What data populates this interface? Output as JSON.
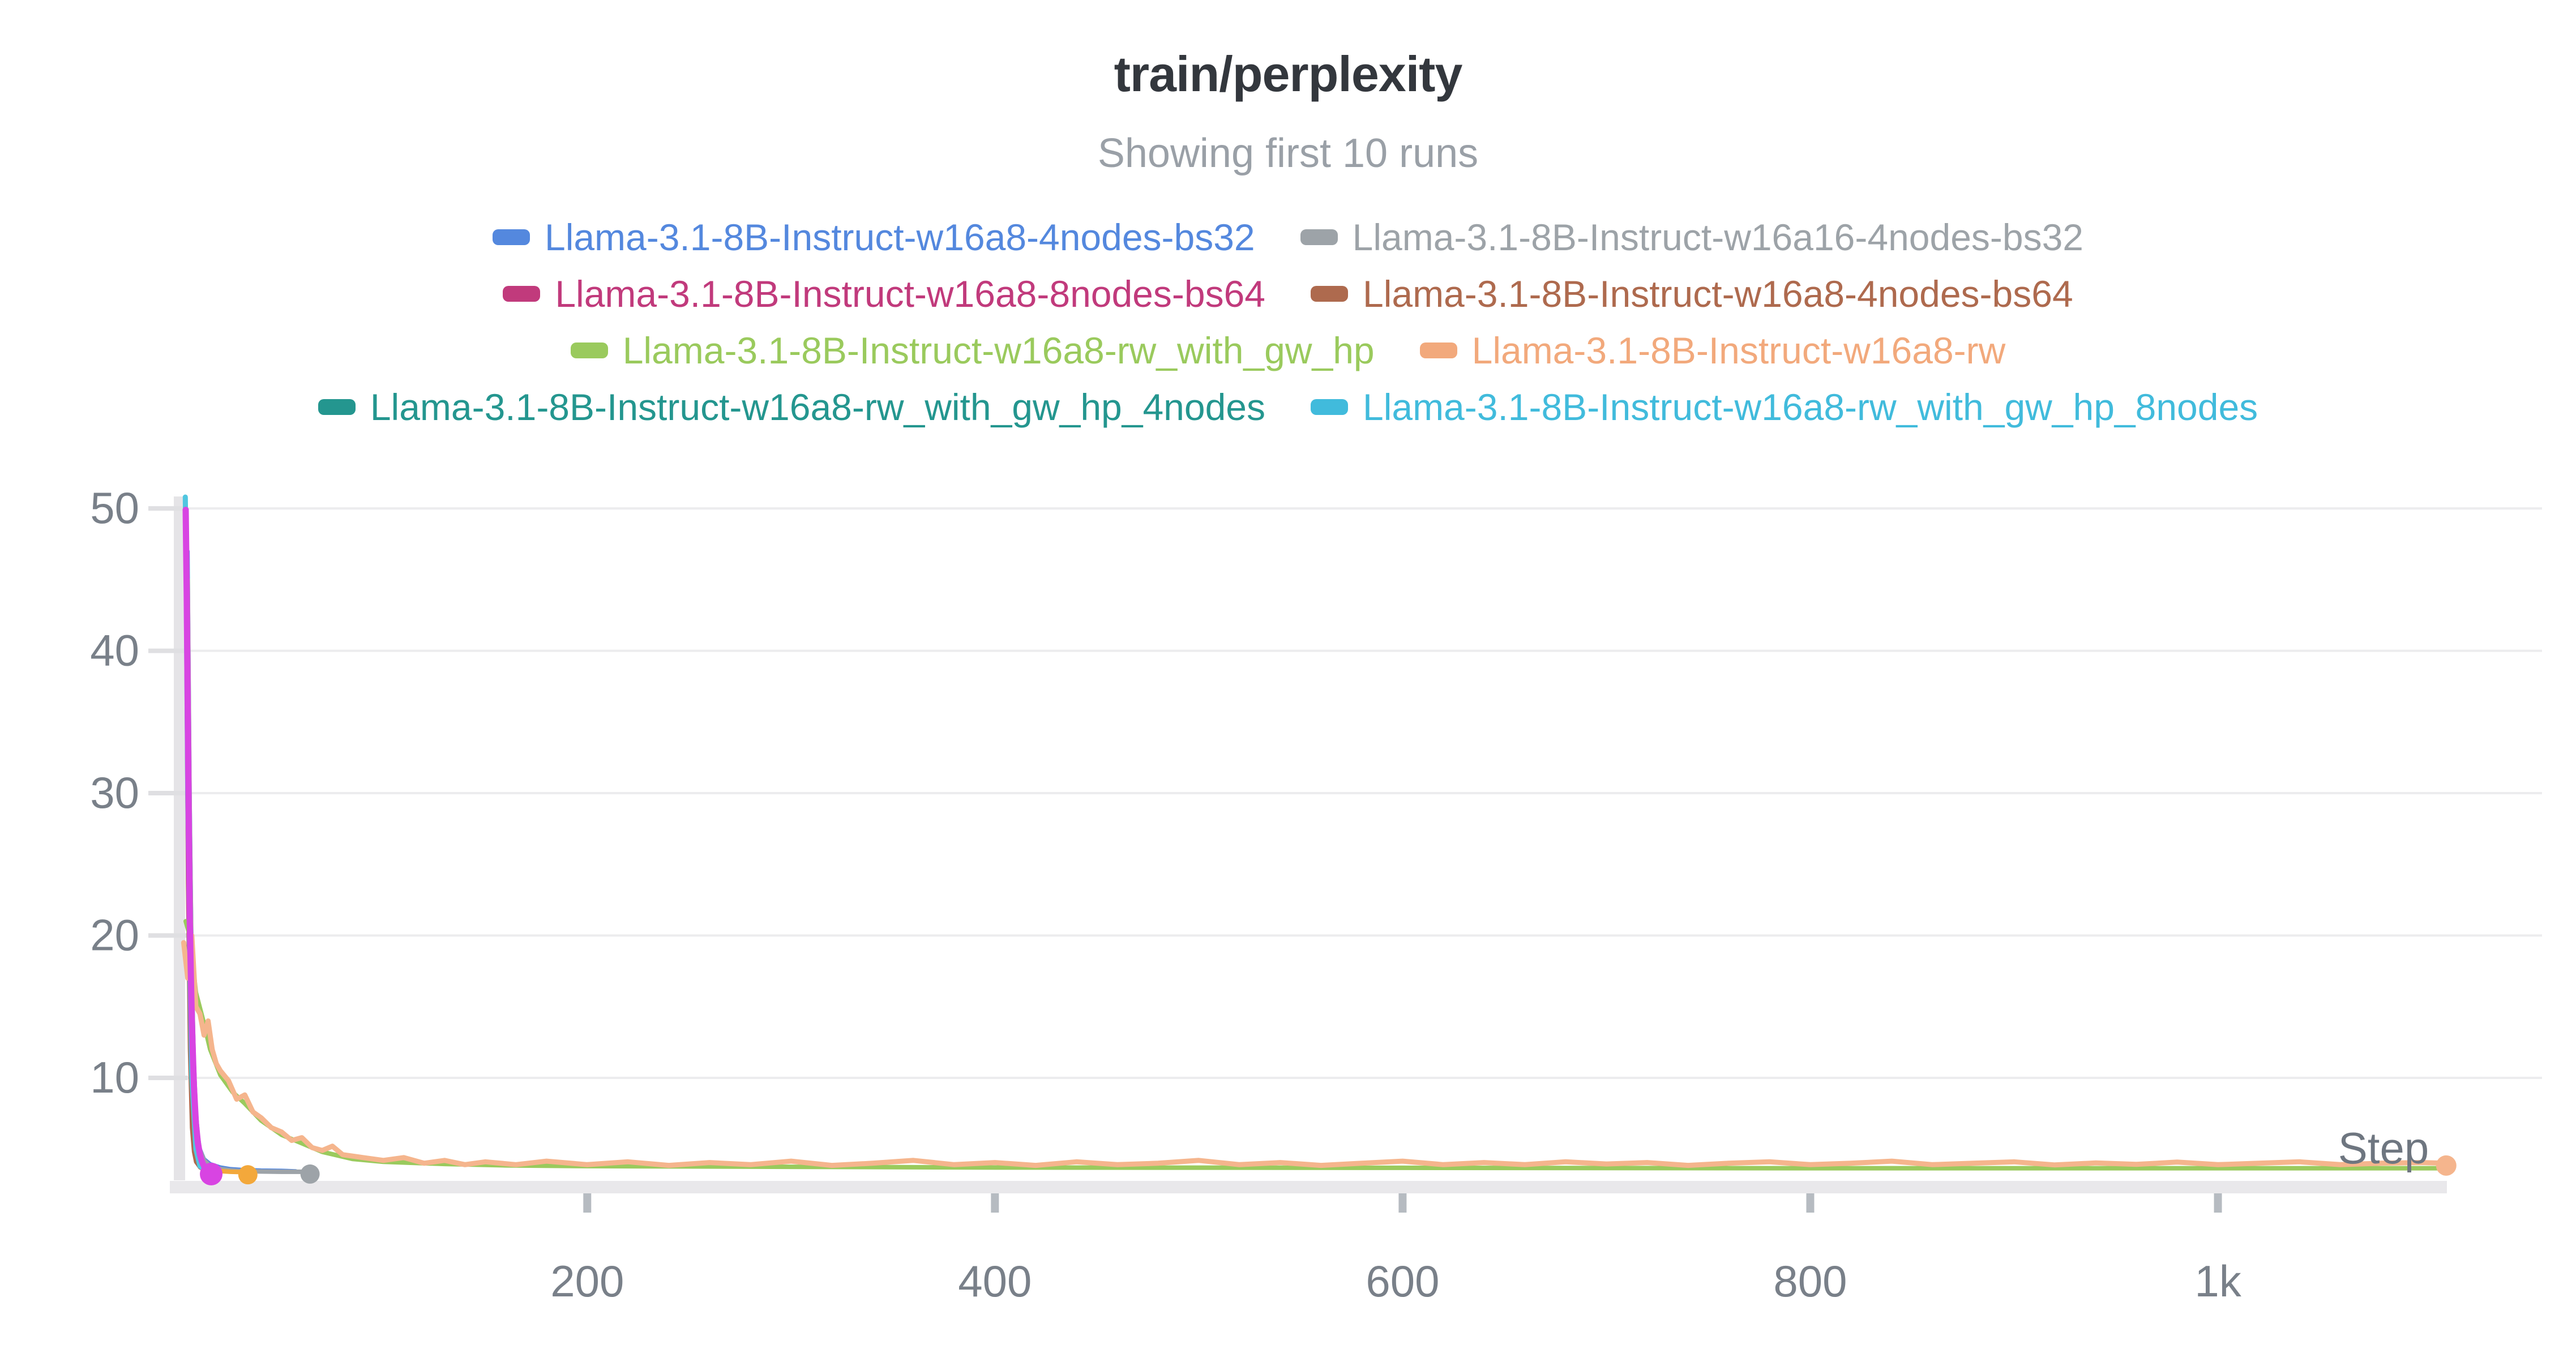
{
  "panel": {
    "title": "train/perplexity",
    "subtitle": "Showing first 10 runs"
  },
  "legend": {
    "per_row": 2,
    "items": [
      {
        "label": "Llama-3.1-8B-Instruct-w16a8-4nodes-bs32",
        "color": "#5488de"
      },
      {
        "label": "Llama-3.1-8B-Instruct-w16a16-4nodes-bs32",
        "color": "#9da3a8"
      },
      {
        "label": "Llama-3.1-8B-Instruct-w16a8-8nodes-bs64",
        "color": "#c13a7c"
      },
      {
        "label": "Llama-3.1-8B-Instruct-w16a8-4nodes-bs64",
        "color": "#ae6a4e"
      },
      {
        "label": "Llama-3.1-8B-Instruct-w16a8-rw_with_gw_hp",
        "color": "#9aca5d"
      },
      {
        "label": "Llama-3.1-8B-Instruct-w16a8-rw",
        "color": "#f2a97c"
      },
      {
        "label": "Llama-3.1-8B-Instruct-w16a8-rw_with_gw_hp_4nodes",
        "color": "#24968f"
      },
      {
        "label": "Llama-3.1-8B-Instruct-w16a8-rw_with_gw_hp_8nodes",
        "color": "#41bbdc"
      }
    ]
  },
  "chart_data": {
    "type": "line",
    "title": "train/perplexity",
    "subtitle": "Showing first 10 runs",
    "xlabel": "Step",
    "ylabel": "",
    "xlim": [
      -2,
      1159
    ],
    "ylim": [
      2.8,
      50.84
    ],
    "x_ticks": [
      200,
      400,
      600,
      800,
      1000
    ],
    "x_tick_labels": [
      "200",
      "400",
      "600",
      "800",
      "1k"
    ],
    "y_ticks": [
      10,
      20,
      30,
      40,
      50
    ],
    "grid": "horizontal",
    "legend_position": "top",
    "plot_colors": {
      "gridline": "#ececee",
      "y_tick_stub": "#dfdfe2",
      "x_tick_stub": "#b6bbc1",
      "axis_band": "#e9e8eb",
      "left_band": "#e5e4e7",
      "tick_label": "#798089",
      "axis_title": "#6e7680"
    },
    "series": [
      {
        "name": "Llama-3.1-8B-Instruct-w16a8-rw_with_gw_hp_4nodes",
        "color": "#24968f",
        "width": 7,
        "end_marker": false,
        "points": [
          [
            3,
            48
          ],
          [
            4,
            26
          ],
          [
            5,
            13
          ],
          [
            6,
            7
          ],
          [
            7,
            5
          ],
          [
            8,
            4.2
          ],
          [
            10,
            3.8
          ],
          [
            12,
            3.6
          ],
          [
            14,
            3.5
          ]
        ]
      },
      {
        "name": "Llama-3.1-8B-Instruct-w16a8-8nodes-bs64",
        "color": "#c13a7c",
        "width": 7,
        "end_marker": false,
        "points": [
          [
            3,
            49
          ],
          [
            4,
            30
          ],
          [
            5,
            16
          ],
          [
            6,
            8.5
          ],
          [
            7,
            5.5
          ],
          [
            8,
            4.5
          ],
          [
            10,
            3.9
          ],
          [
            12,
            3.65
          ],
          [
            15,
            3.5
          ]
        ]
      },
      {
        "name": "Llama-3.1-8B-Instruct-w16a8-4nodes-bs64",
        "color": "#ae6a4e",
        "width": 7,
        "end_marker": false,
        "points": [
          [
            3,
            47
          ],
          [
            4,
            24
          ],
          [
            5,
            12
          ],
          [
            6,
            6.5
          ],
          [
            7,
            4.8
          ],
          [
            8,
            4.1
          ],
          [
            10,
            3.7
          ],
          [
            12,
            3.55
          ],
          [
            14,
            3.45
          ]
        ]
      },
      {
        "name": "Llama-3.1-8B-Instruct-w16a8-4nodes-bs32",
        "color": "#5488de",
        "width": 7,
        "end_marker": false,
        "points": [
          [
            4,
            47
          ],
          [
            5,
            30
          ],
          [
            6,
            18
          ],
          [
            7,
            11.5
          ],
          [
            8,
            7.8
          ],
          [
            9,
            6
          ],
          [
            10,
            5
          ],
          [
            12,
            4.3
          ],
          [
            15,
            3.95
          ],
          [
            20,
            3.72
          ],
          [
            25,
            3.6
          ],
          [
            30,
            3.55
          ],
          [
            40,
            3.5
          ],
          [
            50,
            3.48
          ],
          [
            57,
            3.45
          ]
        ]
      },
      {
        "name": "Llama-3.1-8B-Instruct-w16a16-4nodes-bs32",
        "color": "#9da3a8",
        "width": 8,
        "end_marker": true,
        "marker_r": 17,
        "points": [
          [
            4,
            45
          ],
          [
            5,
            28
          ],
          [
            6,
            17
          ],
          [
            7,
            11
          ],
          [
            8,
            7.5
          ],
          [
            9,
            5.8
          ],
          [
            10,
            4.9
          ],
          [
            12,
            4.2
          ],
          [
            15,
            3.8
          ],
          [
            20,
            3.6
          ],
          [
            25,
            3.5
          ],
          [
            30,
            3.45
          ],
          [
            40,
            3.42
          ],
          [
            50,
            3.4
          ],
          [
            60,
            3.4
          ],
          [
            64,
            3.4
          ]
        ]
      },
      {
        "name": "unlabeled-run-amber",
        "color": "#f3a83b",
        "width": 8,
        "end_marker": true,
        "marker_r": 17,
        "points": [
          [
            4,
            40
          ],
          [
            5,
            25
          ],
          [
            6,
            15
          ],
          [
            7,
            9
          ],
          [
            8,
            6
          ],
          [
            9,
            4.8
          ],
          [
            10,
            4.2
          ],
          [
            12,
            3.8
          ],
          [
            15,
            3.55
          ],
          [
            20,
            3.45
          ],
          [
            25,
            3.4
          ],
          [
            30,
            3.38
          ],
          [
            33.5,
            3.35
          ]
        ]
      },
      {
        "name": "Llama-3.1-8B-Instruct-w16a8-rw_with_gw_hp_8nodes",
        "color": "#50c6e0",
        "width": 9,
        "end_marker": false,
        "points": [
          [
            2.8,
            50.8
          ],
          [
            3.2,
            46
          ],
          [
            4,
            30
          ],
          [
            5,
            18
          ],
          [
            6,
            10
          ],
          [
            8,
            5
          ],
          [
            10,
            3.8
          ],
          [
            13,
            3.5
          ],
          [
            16,
            3.4
          ]
        ]
      },
      {
        "name": "Llama-3.1-8B-Instruct-w16a8-rw_with_gw_hp",
        "color": "#9aca5d",
        "width": 8,
        "end_marker": false,
        "points": [
          [
            3,
            21
          ],
          [
            5,
            20
          ],
          [
            8,
            16
          ],
          [
            12,
            13.8
          ],
          [
            15,
            12
          ],
          [
            20,
            10.2
          ],
          [
            26,
            9
          ],
          [
            32,
            8.2
          ],
          [
            40,
            7
          ],
          [
            50,
            6
          ],
          [
            60,
            5.4
          ],
          [
            70,
            4.8
          ],
          [
            85,
            4.3
          ],
          [
            100,
            4.1
          ],
          [
            130,
            3.95
          ],
          [
            160,
            3.85
          ],
          [
            200,
            3.8
          ],
          [
            300,
            3.75
          ],
          [
            400,
            3.7
          ],
          [
            600,
            3.68
          ],
          [
            800,
            3.65
          ],
          [
            1000,
            3.65
          ],
          [
            1110,
            3.65
          ]
        ]
      },
      {
        "name": "Llama-3.1-8B-Instruct-w16a8-rw",
        "color": "#f5b58d",
        "width": 9,
        "end_marker": true,
        "marker_r": 18,
        "points": [
          [
            2,
            19.5
          ],
          [
            4,
            17
          ],
          [
            6,
            20
          ],
          [
            8,
            15
          ],
          [
            10,
            14.5
          ],
          [
            12,
            13
          ],
          [
            14,
            14
          ],
          [
            16,
            12
          ],
          [
            18,
            11
          ],
          [
            20,
            10.5
          ],
          [
            24,
            9.8
          ],
          [
            28,
            8.5
          ],
          [
            32,
            8.8
          ],
          [
            36,
            7.6
          ],
          [
            40,
            7.2
          ],
          [
            45,
            6.5
          ],
          [
            50,
            6.2
          ],
          [
            55,
            5.6
          ],
          [
            60,
            5.8
          ],
          [
            65,
            5.1
          ],
          [
            70,
            4.9
          ],
          [
            75,
            5.2
          ],
          [
            80,
            4.6
          ],
          [
            90,
            4.4
          ],
          [
            100,
            4.2
          ],
          [
            110,
            4.4
          ],
          [
            120,
            4.0
          ],
          [
            130,
            4.2
          ],
          [
            140,
            3.9
          ],
          [
            150,
            4.1
          ],
          [
            165,
            3.9
          ],
          [
            180,
            4.15
          ],
          [
            200,
            3.9
          ],
          [
            220,
            4.1
          ],
          [
            240,
            3.85
          ],
          [
            260,
            4.05
          ],
          [
            280,
            3.9
          ],
          [
            300,
            4.15
          ],
          [
            320,
            3.85
          ],
          [
            340,
            4.0
          ],
          [
            360,
            4.2
          ],
          [
            380,
            3.9
          ],
          [
            400,
            4.05
          ],
          [
            420,
            3.85
          ],
          [
            440,
            4.1
          ],
          [
            460,
            3.9
          ],
          [
            480,
            4.0
          ],
          [
            500,
            4.2
          ],
          [
            520,
            3.9
          ],
          [
            540,
            4.05
          ],
          [
            560,
            3.85
          ],
          [
            580,
            4.0
          ],
          [
            600,
            4.15
          ],
          [
            620,
            3.9
          ],
          [
            640,
            4.05
          ],
          [
            660,
            3.9
          ],
          [
            680,
            4.1
          ],
          [
            700,
            3.95
          ],
          [
            720,
            4.05
          ],
          [
            740,
            3.85
          ],
          [
            760,
            4.0
          ],
          [
            780,
            4.1
          ],
          [
            800,
            3.9
          ],
          [
            820,
            4.0
          ],
          [
            840,
            4.15
          ],
          [
            860,
            3.9
          ],
          [
            880,
            4.0
          ],
          [
            900,
            4.1
          ],
          [
            920,
            3.88
          ],
          [
            940,
            4.02
          ],
          [
            960,
            3.92
          ],
          [
            980,
            4.08
          ],
          [
            1000,
            3.9
          ],
          [
            1020,
            4.0
          ],
          [
            1040,
            4.1
          ],
          [
            1060,
            3.9
          ],
          [
            1080,
            4.0
          ],
          [
            1100,
            4.05
          ],
          [
            1112,
            4.0
          ]
        ]
      },
      {
        "name": "unlabeled-run-magenta",
        "color": "#d844e2",
        "width": 11,
        "end_marker": true,
        "marker_r": 20,
        "points": [
          [
            3,
            49.9
          ],
          [
            3.5,
            44
          ],
          [
            4,
            36
          ],
          [
            4.5,
            28
          ],
          [
            5,
            21
          ],
          [
            6,
            14
          ],
          [
            7,
            9.5
          ],
          [
            8,
            6.8
          ],
          [
            9,
            5.4
          ],
          [
            10,
            4.6
          ],
          [
            11,
            4.1
          ],
          [
            12,
            3.8
          ],
          [
            13.5,
            3.5
          ],
          [
            15.5,
            3.4
          ]
        ]
      }
    ]
  }
}
